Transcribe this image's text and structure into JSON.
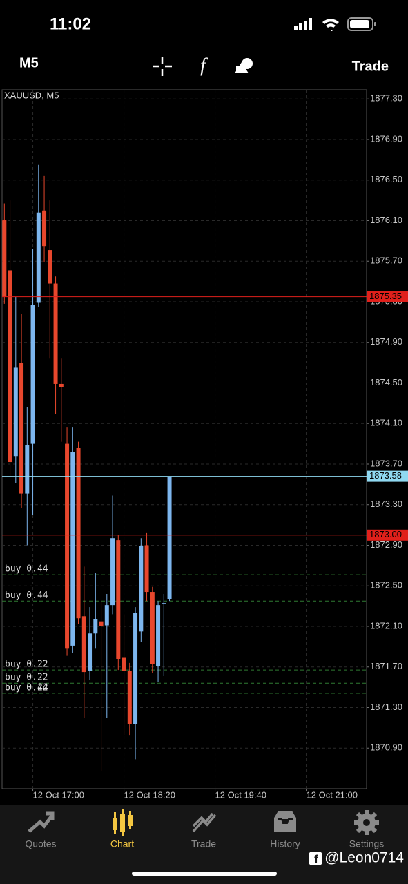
{
  "status_bar": {
    "time": "11:02"
  },
  "toolbar": {
    "timeframe": "M5",
    "trade": "Trade"
  },
  "chart_data": {
    "type": "candlestick",
    "title": "XAUUSD, M5",
    "x": [
      "12 Oct 16:35",
      "12 Oct 16:40",
      "12 Oct 16:45",
      "12 Oct 16:50",
      "12 Oct 16:55",
      "12 Oct 17:00",
      "12 Oct 17:05",
      "12 Oct 17:10",
      "12 Oct 17:15",
      "12 Oct 17:20",
      "12 Oct 17:25",
      "12 Oct 17:30",
      "12 Oct 17:35",
      "12 Oct 17:40",
      "12 Oct 17:45",
      "12 Oct 17:50",
      "12 Oct 17:55",
      "12 Oct 18:00",
      "12 Oct 18:05",
      "12 Oct 18:10",
      "12 Oct 18:15",
      "12 Oct 18:20",
      "12 Oct 18:25",
      "12 Oct 18:30",
      "12 Oct 18:35",
      "12 Oct 18:40",
      "12 Oct 18:45",
      "12 Oct 18:50",
      "12 Oct 18:55",
      "12 Oct 19:00"
    ],
    "open": [
      1876.11,
      1875.61,
      1873.78,
      1874.7,
      1873.41,
      1873.9,
      1875.29,
      1876.2,
      1875.81,
      1875.48,
      1874.49,
      1873.9,
      1871.91,
      1873.86,
      1872.2,
      1871.66,
      1872.03,
      1872.15,
      1872.11,
      1872.31,
      1872.95,
      1871.79,
      1871.66,
      1871.14,
      1872.05,
      1872.9,
      1872.44,
      1871.71,
      1872.32,
      1872.37
    ],
    "high": [
      1876.27,
      1876.3,
      1875.35,
      1875.18,
      1874.26,
      1875.82,
      1876.65,
      1876.54,
      1876.3,
      1875.55,
      1874.74,
      1874.06,
      1874.06,
      1873.92,
      1872.69,
      1872.29,
      1872.63,
      1872.35,
      1872.42,
      1873.39,
      1873.0,
      1872.22,
      1871.74,
      1872.29,
      1872.97,
      1873.02,
      1872.49,
      1872.35,
      1872.42,
      1873.58
    ],
    "low": [
      1875.28,
      1873.58,
      1873.51,
      1873.27,
      1872.9,
      1873.2,
      1875.25,
      1875.69,
      1874.74,
      1874.19,
      1873.92,
      1871.81,
      1871.84,
      1872.12,
      1871.2,
      1871.57,
      1871.88,
      1870.67,
      1871.2,
      1872.22,
      1871.67,
      1871.03,
      1871.03,
      1870.79,
      1871.95,
      1872.35,
      1871.64,
      1871.55,
      1871.61,
      1872.35
    ],
    "close": [
      1875.35,
      1873.72,
      1874.65,
      1873.41,
      1873.89,
      1875.27,
      1876.18,
      1875.85,
      1875.48,
      1874.49,
      1874.46,
      1871.88,
      1873.82,
      1872.18,
      1871.65,
      1872.03,
      1872.17,
      1872.1,
      1872.31,
      1872.97,
      1871.78,
      1871.66,
      1871.14,
      1872.23,
      1872.89,
      1872.44,
      1871.73,
      1872.31,
      1872.33,
      1873.58
    ],
    "up_color": "#7db6ee",
    "down_color": "#e8472d",
    "xlim": [
      "12 Oct 16:33",
      "12 Oct 21:53"
    ],
    "xticks": [
      "12 Oct 17:00",
      "12 Oct 18:20",
      "12 Oct 19:40",
      "12 Oct 21:00"
    ],
    "ylim": [
      1870.5,
      1877.39
    ],
    "yticks": [
      {
        "value": 1877.3,
        "label": "1877.30"
      },
      {
        "value": 1876.9,
        "label": "1876.90"
      },
      {
        "value": 1876.5,
        "label": "1876.50"
      },
      {
        "value": 1876.1,
        "label": "1876.10"
      },
      {
        "value": 1875.7,
        "label": "1875.70"
      },
      {
        "value": 1875.3,
        "label": "1875.30"
      },
      {
        "value": 1874.9,
        "label": "1874.90"
      },
      {
        "value": 1874.5,
        "label": "1874.50"
      },
      {
        "value": 1874.1,
        "label": "1874.10"
      },
      {
        "value": 1873.7,
        "label": "1873.70"
      },
      {
        "value": 1873.3,
        "label": "1873.30"
      },
      {
        "value": 1872.9,
        "label": "1872.90"
      },
      {
        "value": 1872.5,
        "label": "1872.50"
      },
      {
        "value": 1872.1,
        "label": "1872.10"
      },
      {
        "value": 1871.7,
        "label": "1871.70"
      },
      {
        "value": 1871.3,
        "label": "1871.30"
      },
      {
        "value": 1870.9,
        "label": "1870.90"
      }
    ],
    "grid": true,
    "price_lines": [
      {
        "value": 1875.35,
        "label": "1875.35",
        "color": "#e0201b"
      },
      {
        "value": 1873.58,
        "label": "1873.58",
        "color": "#8fd8f0"
      },
      {
        "value": 1873.0,
        "label": "1873.00",
        "color": "#e0201b"
      }
    ],
    "orders": [
      {
        "label": "buy 0.44",
        "price": 1872.61
      },
      {
        "label": "buy 0.44",
        "price": 1872.35
      },
      {
        "label": "buy 0.22",
        "price": 1871.67
      },
      {
        "label": "buy 0.22",
        "price": 1871.54
      },
      {
        "label": "buy 0.22",
        "price": 1871.44
      },
      {
        "label": "buy 0.44",
        "price": 1871.44
      }
    ],
    "order_color": "#2f7a32"
  },
  "tab_bar": {
    "items": [
      "Quotes",
      "Chart",
      "Trade",
      "History",
      "Settings"
    ],
    "active": 1
  },
  "watermark": "@Leon0714"
}
